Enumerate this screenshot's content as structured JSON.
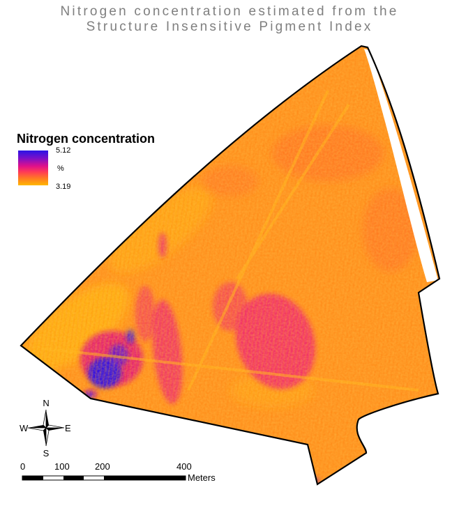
{
  "title": {
    "line1": "Nitrogen concentration estimated from the",
    "line2": "Structure Insensitive Pigment Index"
  },
  "legend": {
    "title": "Nitrogen concentration",
    "max": "5.12",
    "unit": "%",
    "min": "3.19",
    "ramp_colors": [
      "#2a14e6",
      "#7a10c8",
      "#e0108a",
      "#ff3c55",
      "#ff7a22",
      "#ffb800"
    ]
  },
  "north_arrow": {
    "n": "N",
    "s": "S",
    "e": "E",
    "w": "W"
  },
  "scale_bar": {
    "ticks": [
      "0",
      "100",
      "200",
      "400"
    ],
    "unit": "Meters"
  },
  "colors": {
    "field_base": "#ff8f1c",
    "field_light": "#ffaa10",
    "high_magenta": "#ef1a78",
    "highest_blue": "#2a12e8",
    "boundary": "#000000"
  }
}
